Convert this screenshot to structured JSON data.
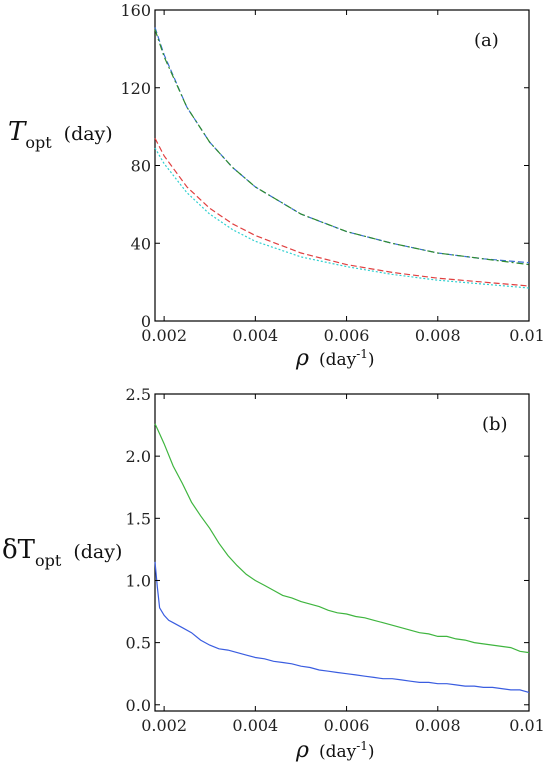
{
  "chart_data": [
    {
      "type": "line",
      "panel_label": "(a)",
      "ylabel_var": "T",
      "ylabel_sub": "opt",
      "ylabel_unit": "(day)",
      "xlabel_var": "ρ",
      "xlabel_unit": "(day",
      "xlabel_exp": "-1",
      "xlabel_close": ")",
      "xlim": [
        0.0018,
        0.01
      ],
      "ylim": [
        0,
        160
      ],
      "xticks": [
        "0.002",
        "0.004",
        "0.006",
        "0.008",
        "0.01"
      ],
      "xtick_values": [
        0.002,
        0.004,
        0.006,
        0.008,
        0.01
      ],
      "yticks": [
        "0",
        "40",
        "80",
        "120",
        "160"
      ],
      "ytick_values": [
        0,
        40,
        80,
        120,
        160
      ],
      "series": [
        {
          "color": "#3b6fd6",
          "style": "dashed",
          "x": [
            0.0018,
            0.002,
            0.0025,
            0.003,
            0.0035,
            0.004,
            0.005,
            0.006,
            0.007,
            0.008,
            0.009,
            0.01
          ],
          "y": [
            151,
            137,
            110,
            92,
            79,
            69,
            55,
            46,
            40,
            35,
            32,
            30
          ]
        },
        {
          "color": "#2e8b2e",
          "style": "dashdot",
          "x": [
            0.0018,
            0.002,
            0.0025,
            0.003,
            0.0035,
            0.004,
            0.005,
            0.006,
            0.007,
            0.008,
            0.009,
            0.01
          ],
          "y": [
            150,
            136,
            110,
            92,
            79,
            69,
            55,
            46,
            40,
            35,
            32,
            29
          ]
        },
        {
          "color": "#e04040",
          "style": "dashed",
          "x": [
            0.0018,
            0.002,
            0.0025,
            0.003,
            0.0035,
            0.004,
            0.005,
            0.006,
            0.007,
            0.008,
            0.009,
            0.01
          ],
          "y": [
            94,
            85,
            69,
            58,
            50,
            44,
            35,
            29,
            25,
            22,
            20,
            18
          ]
        },
        {
          "color": "#30d0d0",
          "style": "dotted",
          "x": [
            0.0018,
            0.002,
            0.0025,
            0.003,
            0.0035,
            0.004,
            0.005,
            0.006,
            0.007,
            0.008,
            0.009,
            0.01
          ],
          "y": [
            89,
            81,
            66,
            55,
            47,
            41,
            33,
            28,
            24,
            21,
            19,
            17
          ]
        }
      ]
    },
    {
      "type": "line",
      "panel_label": "(b)",
      "ylabel_var": "δT",
      "ylabel_sub": "opt",
      "ylabel_unit": "(day)",
      "xlabel_var": "ρ",
      "xlabel_unit": "(day",
      "xlabel_exp": "-1",
      "xlabel_close": ")",
      "xlim": [
        0.0018,
        0.01
      ],
      "ylim": [
        -0.05,
        2.5
      ],
      "xticks": [
        "0.002",
        "0.004",
        "0.006",
        "0.008",
        "0.01"
      ],
      "xtick_values": [
        0.002,
        0.004,
        0.006,
        0.008,
        0.01
      ],
      "yticks": [
        "0.0",
        "0.5",
        "1.0",
        "1.5",
        "2.0",
        "2.5"
      ],
      "ytick_values": [
        0,
        0.5,
        1.0,
        1.5,
        2.0,
        2.5
      ],
      "series": [
        {
          "color": "#3fb53f",
          "style": "solid",
          "x": [
            0.0018,
            0.0019,
            0.002,
            0.0022,
            0.0024,
            0.0026,
            0.0028,
            0.003,
            0.0032,
            0.0034,
            0.0036,
            0.0038,
            0.004,
            0.0042,
            0.0044,
            0.0046,
            0.0048,
            0.005,
            0.0052,
            0.0054,
            0.0056,
            0.0058,
            0.006,
            0.0062,
            0.0064,
            0.0066,
            0.0068,
            0.007,
            0.0072,
            0.0074,
            0.0076,
            0.0078,
            0.008,
            0.0082,
            0.0084,
            0.0086,
            0.0088,
            0.009,
            0.0092,
            0.0094,
            0.0096,
            0.0098,
            0.01
          ],
          "y": [
            2.26,
            2.18,
            2.1,
            1.92,
            1.78,
            1.63,
            1.52,
            1.42,
            1.3,
            1.2,
            1.12,
            1.05,
            1.0,
            0.96,
            0.92,
            0.88,
            0.86,
            0.83,
            0.81,
            0.79,
            0.76,
            0.74,
            0.73,
            0.71,
            0.7,
            0.68,
            0.66,
            0.64,
            0.62,
            0.6,
            0.58,
            0.57,
            0.55,
            0.55,
            0.53,
            0.52,
            0.5,
            0.49,
            0.48,
            0.47,
            0.46,
            0.43,
            0.42
          ]
        },
        {
          "color": "#3a5de0",
          "style": "solid",
          "x": [
            0.0018,
            0.00185,
            0.0019,
            0.002,
            0.0021,
            0.0022,
            0.0024,
            0.0026,
            0.0028,
            0.003,
            0.0032,
            0.0034,
            0.0036,
            0.0038,
            0.004,
            0.0042,
            0.0044,
            0.0046,
            0.0048,
            0.005,
            0.0052,
            0.0054,
            0.0056,
            0.0058,
            0.006,
            0.0062,
            0.0064,
            0.0066,
            0.0068,
            0.007,
            0.0072,
            0.0074,
            0.0076,
            0.0078,
            0.008,
            0.0082,
            0.0084,
            0.0086,
            0.0088,
            0.009,
            0.0092,
            0.0094,
            0.0096,
            0.0098,
            0.01
          ],
          "y": [
            1.15,
            0.95,
            0.78,
            0.72,
            0.68,
            0.66,
            0.62,
            0.58,
            0.52,
            0.48,
            0.45,
            0.44,
            0.42,
            0.4,
            0.38,
            0.37,
            0.35,
            0.34,
            0.33,
            0.31,
            0.3,
            0.28,
            0.27,
            0.26,
            0.25,
            0.24,
            0.23,
            0.22,
            0.21,
            0.21,
            0.2,
            0.19,
            0.18,
            0.18,
            0.17,
            0.17,
            0.16,
            0.15,
            0.15,
            0.14,
            0.14,
            0.13,
            0.12,
            0.12,
            0.1
          ]
        }
      ]
    }
  ]
}
